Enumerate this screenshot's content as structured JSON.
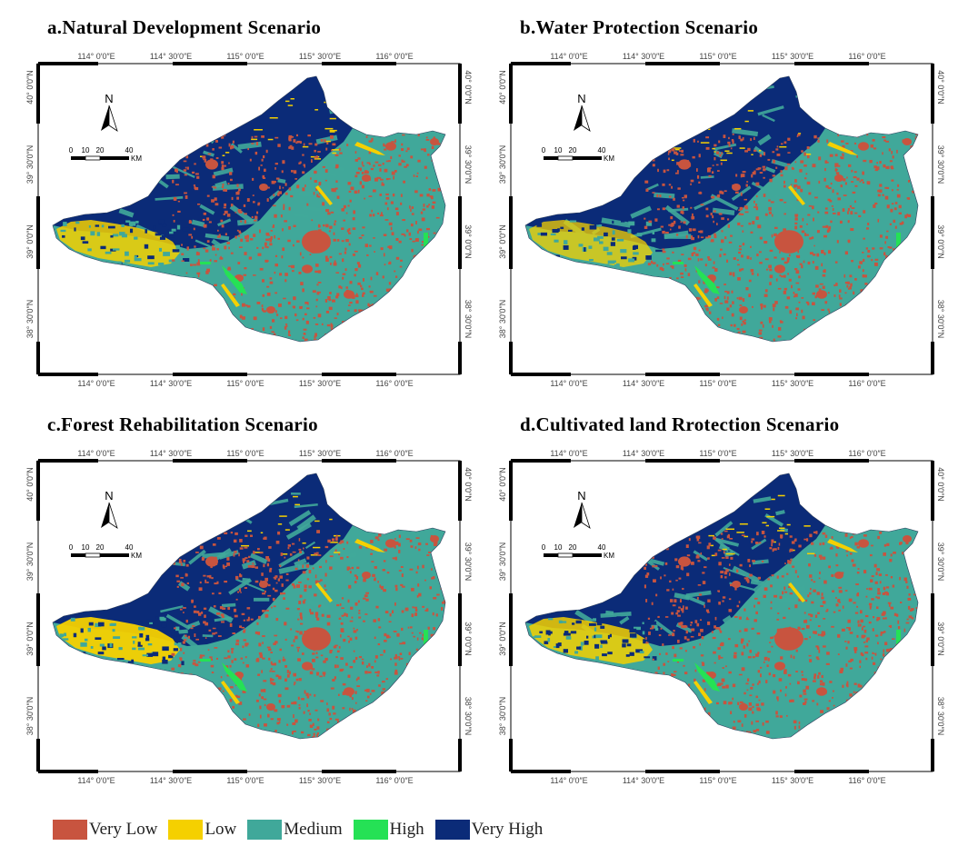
{
  "panels": [
    {
      "id": "a",
      "title": "a.Natural Development Scenario"
    },
    {
      "id": "b",
      "title": "b.Water Protection Scenario"
    },
    {
      "id": "c",
      "title": "c.Forest Rehabilitation Scenario"
    },
    {
      "id": "d",
      "title": "d.Cultivated land Rrotection Scenario"
    }
  ],
  "lon_ticks": [
    "114° 0′0″E",
    "114° 30′0″E",
    "115° 0′0″E",
    "115° 30′0″E",
    "116° 0′0″E"
  ],
  "lat_ticks_left": [
    "40° 0′0″N",
    "39° 30′0″N",
    "39° 0′0″N",
    "38° 30′0″N"
  ],
  "lat_ticks_right": [
    "40° 0′0″N",
    "39° 30′0″N",
    "39° 0′0″N",
    "38° 30′0″N"
  ],
  "north_label": "N",
  "scale_bar": {
    "labels": [
      "0",
      "10",
      "20",
      "40"
    ],
    "unit": "KM"
  },
  "legend": [
    {
      "label": "Very Low",
      "color": "#c8543f"
    },
    {
      "label": "Low",
      "color": "#f5d000"
    },
    {
      "label": "Medium",
      "color": "#40a89a"
    },
    {
      "label": "High",
      "color": "#25e155"
    },
    {
      "label": "Very High",
      "color": "#0b2b78"
    }
  ],
  "colors": {
    "frame": "#000000",
    "tick_text": "#444444"
  }
}
